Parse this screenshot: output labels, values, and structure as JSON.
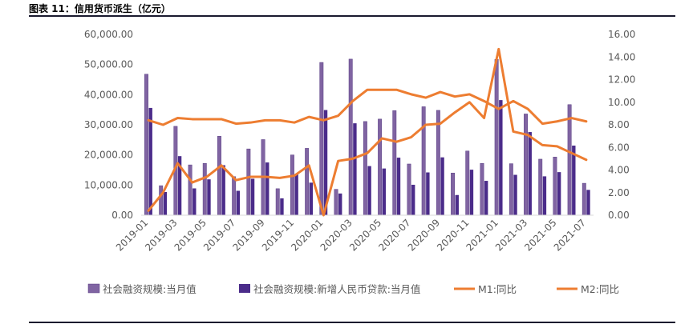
{
  "figure": {
    "title": "图表 11：信用货币派生（亿元）"
  },
  "chart_data": {
    "type": "bar",
    "categories": [
      "2019-01",
      "2019-02",
      "2019-03",
      "2019-04",
      "2019-05",
      "2019-06",
      "2019-07",
      "2019-08",
      "2019-09",
      "2019-10",
      "2019-11",
      "2019-12",
      "2020-01",
      "2020-02",
      "2020-03",
      "2020-04",
      "2020-05",
      "2020-06",
      "2020-07",
      "2020-08",
      "2020-09",
      "2020-10",
      "2020-11",
      "2020-12",
      "2021-01",
      "2021-02",
      "2021-03",
      "2021-04",
      "2021-05",
      "2021-06",
      "2021-07"
    ],
    "x_tick_labels": [
      "2019-01",
      "2019-03",
      "2019-05",
      "2019-07",
      "2019-09",
      "2019-11",
      "2020-01",
      "2020-03",
      "2020-05",
      "2020-07",
      "2020-09",
      "2020-11",
      "2021-01",
      "2021-03",
      "2021-05",
      "2021-07"
    ],
    "left_axis": {
      "ylim": [
        0,
        60000
      ],
      "ticks": [
        "0.00",
        "10,000.00",
        "20,000.00",
        "30,000.00",
        "40,000.00",
        "50,000.00",
        "60,000.00"
      ]
    },
    "right_axis": {
      "ylim": [
        0,
        16
      ],
      "ticks": [
        "0.00",
        "2.00",
        "4.00",
        "6.00",
        "8.00",
        "10.00",
        "12.00",
        "14.00",
        "16.00"
      ]
    },
    "series": [
      {
        "name": "社会融资规模:当月值",
        "type": "bar",
        "axis": "left",
        "color": "#8064a2",
        "values": [
          46800,
          9800,
          29500,
          16700,
          17200,
          26200,
          12800,
          22000,
          25100,
          8800,
          20000,
          22200,
          50700,
          8600,
          51800,
          31100,
          31900,
          34700,
          17000,
          36000,
          34800,
          14000,
          21300,
          17200,
          51700,
          17100,
          33600,
          18600,
          19300,
          36700,
          10600
        ]
      },
      {
        "name": "社会融资规模:新增人民币贷款:当月值",
        "type": "bar",
        "axis": "left",
        "color": "#4b2c8a",
        "values": [
          35600,
          7700,
          19600,
          8900,
          11900,
          16600,
          8100,
          12100,
          17500,
          5600,
          13600,
          10800,
          34900,
          7200,
          30500,
          16300,
          15500,
          19100,
          10100,
          14200,
          19200,
          6700,
          15100,
          11400,
          38200,
          13400,
          27600,
          12900,
          14300,
          23100,
          8400
        ]
      },
      {
        "name": "M1:同比",
        "type": "line",
        "axis": "right",
        "color": "#ed7d31",
        "values": [
          0.4,
          2.0,
          4.6,
          2.9,
          3.4,
          4.4,
          3.1,
          3.4,
          3.4,
          3.3,
          3.5,
          4.4,
          0.0,
          4.8,
          5.0,
          5.5,
          6.8,
          6.5,
          6.9,
          8.0,
          8.1,
          9.1,
          10.0,
          8.6,
          14.7,
          7.4,
          7.1,
          6.2,
          6.1,
          5.5,
          4.9
        ]
      },
      {
        "name": "M2:同比",
        "type": "line",
        "axis": "right",
        "color": "#ed7d31",
        "values": [
          8.4,
          8.0,
          8.6,
          8.5,
          8.5,
          8.5,
          8.1,
          8.2,
          8.4,
          8.4,
          8.2,
          8.7,
          8.4,
          8.8,
          10.1,
          11.1,
          11.1,
          11.1,
          10.7,
          10.4,
          10.9,
          10.5,
          10.7,
          10.1,
          9.4,
          10.1,
          9.4,
          8.1,
          8.3,
          8.6,
          8.3
        ]
      }
    ],
    "legend_position": "bottom",
    "grid": false
  }
}
